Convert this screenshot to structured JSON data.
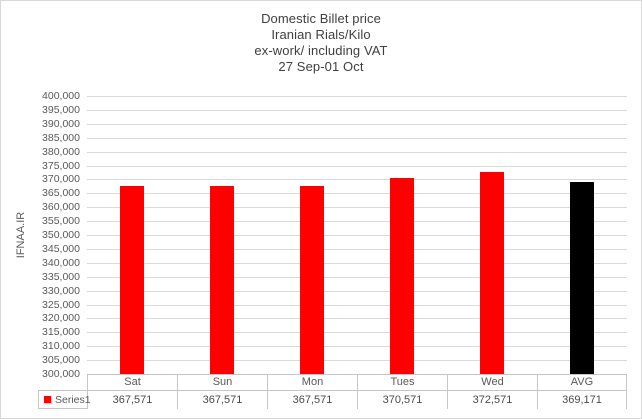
{
  "title": {
    "lines": [
      "Domestic Billet price",
      "Iranian Rials/Kilo",
      "ex-work/ including VAT",
      "27 Sep-01 Oct"
    ]
  },
  "chart_data": {
    "type": "bar",
    "title": "Domestic Billet price Iranian Rials/Kilo ex-work/ including VAT 27 Sep-01 Oct",
    "categories": [
      "Sat",
      "Sun",
      "Mon",
      "Tues",
      "Wed",
      "AVG"
    ],
    "series": [
      {
        "name": "Series1",
        "values": [
          367571,
          367571,
          367571,
          370571,
          372571,
          369171
        ]
      }
    ],
    "values_formatted": [
      "367,571",
      "367,571",
      "367,571",
      "370,571",
      "372,571",
      "369,171"
    ],
    "bar_colors": [
      "#ff0000",
      "#ff0000",
      "#ff0000",
      "#ff0000",
      "#ff0000",
      "#000000"
    ],
    "xlabel": "",
    "ylabel": "IFNAA.IR",
    "ylim": [
      300000,
      400000
    ],
    "ytick_step": 5000,
    "grid": true,
    "legend": {
      "position": "bottom-left-table",
      "entries": [
        {
          "label": "Series1",
          "color": "#ff0000"
        }
      ]
    },
    "data_table_shown": true
  },
  "colors": {
    "gridline": "#d9d9d9",
    "table_border": "#c6c6c6",
    "axis_text": "#595959",
    "title_text": "#3f3f3f",
    "background": "#ffffff"
  }
}
